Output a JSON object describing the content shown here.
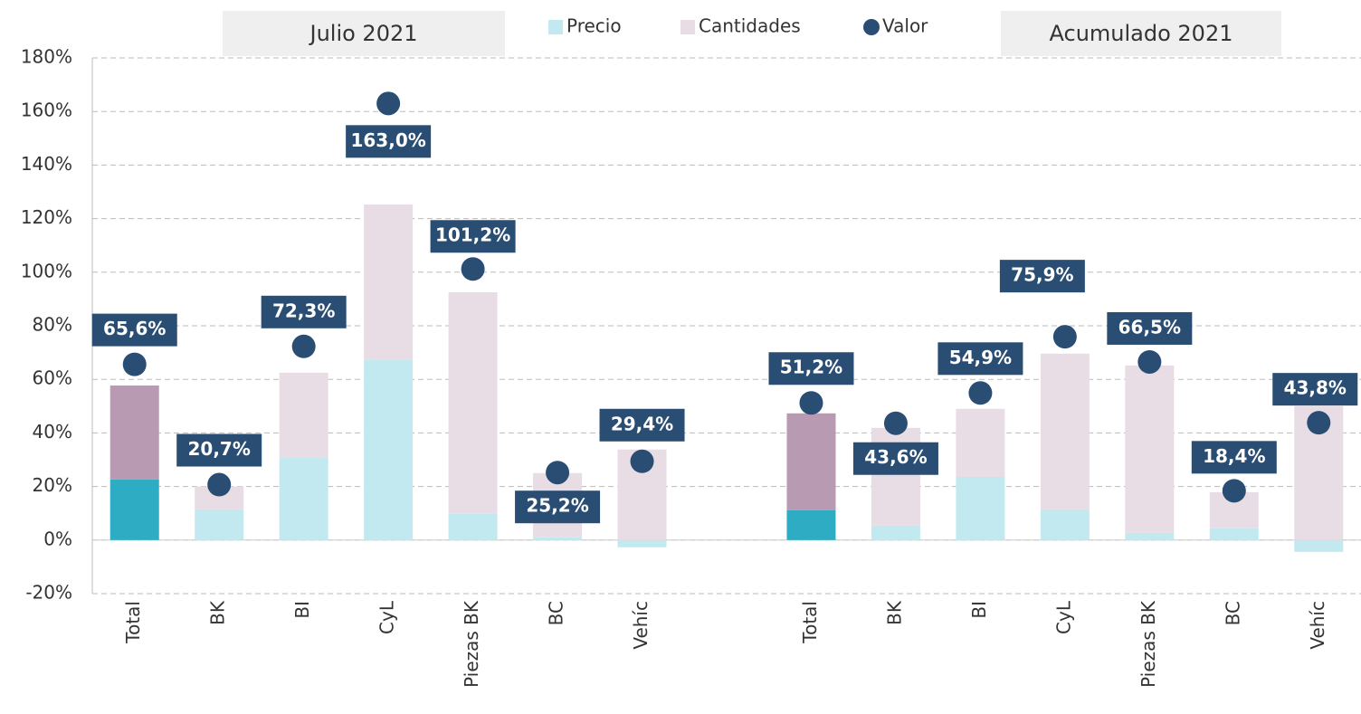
{
  "chart_data": {
    "type": "stacked_bar_dot",
    "group_labels": [
      "Julio 2021",
      "Acumulado 2021"
    ],
    "categories": [
      "Total",
      "BK",
      "BI",
      "CyL",
      "Piezas BK",
      "BC",
      "Vehíc",
      null,
      "Total",
      "BK",
      "BI",
      "CyL",
      "Piezas BK",
      "BC",
      "Vehíc"
    ],
    "highlight_categories": [
      0,
      8
    ],
    "series": [
      {
        "name": "Precio",
        "color": "#c2e9ef",
        "highlight_color": "#2eacc4",
        "stack": true,
        "values": [
          22.6,
          11.5,
          30.7,
          67.2,
          9.8,
          1.0,
          -2.7,
          null,
          11.1,
          5.4,
          23.6,
          11.5,
          2.7,
          4.4,
          -4.4
        ]
      },
      {
        "name": "Cantidades",
        "color": "#e8dde4",
        "highlight_color": "#b89bb3",
        "stack": true,
        "values": [
          35.1,
          8.5,
          31.8,
          58.1,
          82.7,
          24.0,
          33.8,
          null,
          36.2,
          36.5,
          25.4,
          58.1,
          62.5,
          13.5,
          50.0
        ]
      },
      {
        "name": "Valor",
        "color": "#2a4d73",
        "stack": false,
        "values": [
          65.6,
          20.7,
          72.3,
          163.0,
          101.2,
          25.2,
          29.4,
          null,
          51.2,
          43.6,
          54.9,
          75.9,
          66.5,
          18.4,
          43.8
        ],
        "value_labels": [
          "65,6%",
          "20,7%",
          "72,3%",
          "163,0%",
          "101,2%",
          "25,2%",
          "29,4%",
          null,
          "51,2%",
          "43,6%",
          "54,9%",
          "75,9%",
          "66,5%",
          "18,4%",
          "43,8%"
        ]
      }
    ],
    "ylim": [
      -20,
      180
    ],
    "yticks": [
      {
        "value": -20,
        "label": "-20%"
      },
      {
        "value": 0,
        "label": "0%"
      },
      {
        "value": 20,
        "label": "20%"
      },
      {
        "value": 40,
        "label": "40%"
      },
      {
        "value": 60,
        "label": "60%"
      },
      {
        "value": 80,
        "label": "80%"
      },
      {
        "value": 100,
        "label": "100%"
      },
      {
        "value": 120,
        "label": "120%"
      },
      {
        "value": 140,
        "label": "140%"
      },
      {
        "value": 160,
        "label": "160%"
      },
      {
        "value": 180,
        "label": "180%"
      }
    ],
    "grid": true
  }
}
